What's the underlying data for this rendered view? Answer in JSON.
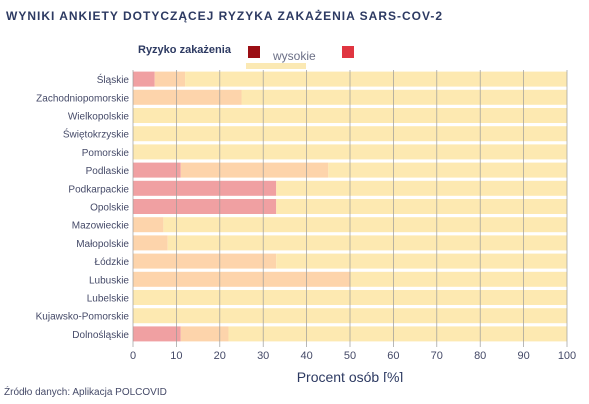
{
  "title": "WYNIKI ANKIETY DOTYCZĄCEJ RYZYKA ZAKAŻENIA SARS-COV-2",
  "legend": {
    "title": "Ryzyko zakażenia",
    "items": [
      {
        "label": "wysokie",
        "color": "#9b0e14"
      },
      {
        "label": "",
        "color": "#e03540"
      }
    ]
  },
  "source": "Źródło danych: Aplikacja POLCOVID",
  "colors": {
    "high": "#f0a0a2",
    "medium": "#fdd4ab",
    "low": "#fde9b1",
    "grid": "#9a9a9a",
    "text": "#454a68"
  },
  "chart_data": {
    "type": "bar",
    "orientation": "horizontal",
    "stacked": true,
    "categories": [
      "Śląskie",
      "Zachodniopomorskie",
      "Wielkopolskie",
      "Świętokrzyskie",
      "Pomorskie",
      "Podlaskie",
      "Podkarpackie",
      "Opolskie",
      "Mazowieckie",
      "Małopolskie",
      "Łódzkie",
      "Lubuskie",
      "Lubelskie",
      "Kujawsko-Pomorskie",
      "Dolnośląskie"
    ],
    "series": [
      {
        "name": "wysokie",
        "values": [
          5,
          0,
          0,
          0,
          0,
          11,
          33,
          33,
          0,
          0,
          0,
          0,
          0,
          0,
          11
        ]
      },
      {
        "values": [
          7,
          25,
          0,
          0,
          0,
          34,
          0,
          0,
          7,
          8,
          33,
          50,
          0,
          0,
          11
        ]
      },
      {
        "values": [
          88,
          75,
          100,
          100,
          100,
          55,
          67,
          67,
          93,
          92,
          67,
          50,
          100,
          100,
          78
        ]
      }
    ],
    "xlabel": "Procent osób [%]",
    "xlim": [
      0,
      100
    ],
    "xticks": [
      "0",
      "10",
      "20",
      "30",
      "40",
      "50",
      "60",
      "70",
      "80",
      "90",
      "100"
    ],
    "grid": true,
    "legend_position": "top"
  }
}
